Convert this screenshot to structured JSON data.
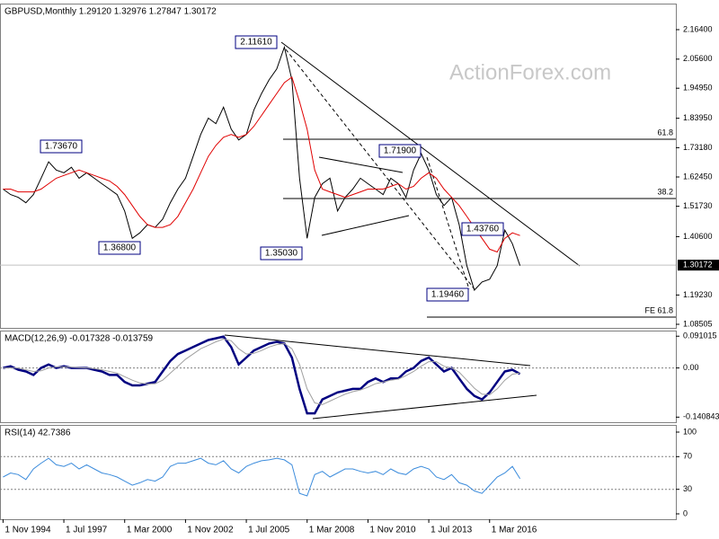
{
  "chart_data": [
    {
      "type": "line",
      "title": "GBPUSD,Monthly  1.29120 1.32976 1.27847 1.30172",
      "watermark": "ActionForex.com",
      "xlim": [
        -0.4,
        88.5
      ],
      "ylim": [
        1.0719,
        2.2561
      ],
      "yticks": [
        {
          "value": 2.164,
          "label": "2.16400"
        },
        {
          "value": 2.056,
          "label": "2.05600"
        },
        {
          "value": 1.9495,
          "label": "1.94950"
        },
        {
          "value": 1.8395,
          "label": "1.83950"
        },
        {
          "value": 1.7318,
          "label": "1.73180"
        },
        {
          "value": 1.6245,
          "label": "1.62450"
        },
        {
          "value": 1.5173,
          "label": "1.51730"
        },
        {
          "value": 1.406,
          "label": "1.40600"
        },
        {
          "value": 1.1923,
          "label": "1.19230"
        },
        {
          "value": 1.08505,
          "label": "1.08505"
        }
      ],
      "last_price": {
        "value": 1.30172,
        "label": "1.30172"
      },
      "levels": [
        {
          "value": 1.7627,
          "label": "61.8"
        },
        {
          "value": 1.5456,
          "label": "38.2"
        },
        {
          "value": 1.1114,
          "label": "FE 61.8"
        }
      ],
      "annotations": [
        "2.11610",
        "1.73670",
        "1.71900",
        "1.43760",
        "1.36800",
        "1.35030",
        "1.19460"
      ],
      "series": [
        {
          "color": "#000000",
          "values": [
            1.58,
            1.56,
            1.55,
            1.53,
            1.56,
            1.62,
            1.68,
            1.65,
            1.64,
            1.66,
            1.62,
            1.64,
            1.62,
            1.6,
            1.58,
            1.56,
            1.5,
            1.4,
            1.42,
            1.45,
            1.44,
            1.47,
            1.53,
            1.58,
            1.62,
            1.7,
            1.78,
            1.84,
            1.82,
            1.88,
            1.8,
            1.76,
            1.78,
            1.87,
            1.93,
            1.98,
            2.02,
            2.1,
            1.98,
            1.62,
            1.4,
            1.55,
            1.6,
            1.62,
            1.5,
            1.55,
            1.58,
            1.62,
            1.6,
            1.58,
            1.56,
            1.62,
            1.6,
            1.55,
            1.65,
            1.71,
            1.65,
            1.56,
            1.52,
            1.55,
            1.45,
            1.3,
            1.21,
            1.24,
            1.25,
            1.3,
            1.43,
            1.38,
            1.3
          ]
        },
        {
          "color": "#e00000",
          "values": [
            1.58,
            1.58,
            1.57,
            1.57,
            1.57,
            1.58,
            1.6,
            1.62,
            1.63,
            1.64,
            1.65,
            1.64,
            1.63,
            1.62,
            1.61,
            1.59,
            1.56,
            1.52,
            1.48,
            1.45,
            1.44,
            1.44,
            1.45,
            1.48,
            1.53,
            1.58,
            1.64,
            1.7,
            1.74,
            1.77,
            1.78,
            1.77,
            1.78,
            1.81,
            1.85,
            1.89,
            1.93,
            1.97,
            1.99,
            1.9,
            1.8,
            1.65,
            1.58,
            1.57,
            1.56,
            1.55,
            1.56,
            1.57,
            1.58,
            1.58,
            1.58,
            1.59,
            1.6,
            1.58,
            1.59,
            1.62,
            1.64,
            1.62,
            1.58,
            1.55,
            1.52,
            1.48,
            1.44,
            1.4,
            1.36,
            1.35,
            1.4,
            1.42,
            1.41
          ]
        }
      ]
    },
    {
      "type": "line",
      "title": "MACD(12,26,9) -0.017328 -0.013759",
      "xlim": [
        -0.4,
        88.5
      ],
      "ylim": [
        -0.1554,
        0.1045
      ],
      "yticks": [
        0.091015,
        {
          "value": 0,
          "label": "0.00"
        },
        -0.140843
      ],
      "levels": [
        0
      ],
      "series": [
        {
          "color": "#000080",
          "width": 2.5,
          "values": [
            0,
            0.005,
            -0.005,
            -0.01,
            -0.02,
            0,
            0.01,
            0,
            0.005,
            0,
            0,
            0,
            -0.005,
            -0.01,
            -0.02,
            -0.02,
            -0.04,
            -0.05,
            -0.05,
            -0.045,
            -0.04,
            -0.01,
            0.02,
            0.04,
            0.05,
            0.06,
            0.07,
            0.08,
            0.085,
            0.09,
            0.06,
            0.01,
            0.03,
            0.05,
            0.06,
            0.07,
            0.075,
            0.07,
            0.03,
            -0.06,
            -0.13,
            -0.13,
            -0.09,
            -0.08,
            -0.07,
            -0.065,
            -0.06,
            -0.06,
            -0.04,
            -0.03,
            -0.04,
            -0.03,
            -0.03,
            -0.01,
            0,
            0.02,
            0.03,
            0.01,
            -0.01,
            0,
            -0.03,
            -0.06,
            -0.08,
            -0.09,
            -0.07,
            -0.04,
            -0.01,
            -0.005,
            -0.017
          ]
        },
        {
          "color": "#a0a0a0",
          "width": 1,
          "values": [
            0,
            0,
            0,
            -0.005,
            -0.01,
            -0.008,
            0,
            0.003,
            0.003,
            0.002,
            0.001,
            0,
            -0.002,
            -0.005,
            -0.01,
            -0.015,
            -0.025,
            -0.035,
            -0.043,
            -0.046,
            -0.045,
            -0.035,
            -0.015,
            0.005,
            0.025,
            0.04,
            0.055,
            0.065,
            0.075,
            0.083,
            0.078,
            0.055,
            0.04,
            0.042,
            0.05,
            0.06,
            0.067,
            0.07,
            0.055,
            0.01,
            -0.06,
            -0.1,
            -0.105,
            -0.095,
            -0.085,
            -0.075,
            -0.068,
            -0.063,
            -0.055,
            -0.045,
            -0.04,
            -0.035,
            -0.032,
            -0.022,
            -0.01,
            0.005,
            0.018,
            0.018,
            0.005,
            0,
            -0.012,
            -0.035,
            -0.058,
            -0.075,
            -0.077,
            -0.06,
            -0.035,
            -0.018,
            -0.014
          ]
        }
      ]
    },
    {
      "type": "line",
      "title": "RSI(14) 42.7386",
      "xlim": [
        -0.4,
        88.5
      ],
      "ylim": [
        -6.6,
        107.7
      ],
      "yticks": [
        100,
        70,
        30,
        0
      ],
      "levels": [
        70,
        30
      ],
      "xticks": [
        {
          "value": 0,
          "label": "1 Nov 1994"
        },
        {
          "value": 8,
          "label": "1 Jul 1997"
        },
        {
          "value": 16,
          "label": "1 Mar 2000"
        },
        {
          "value": 24,
          "label": "1 Nov 2002"
        },
        {
          "value": 32,
          "label": "1 Jul 2005"
        },
        {
          "value": 40,
          "label": "1 Mar 2008"
        },
        {
          "value": 48,
          "label": "1 Nov 2010"
        },
        {
          "value": 56,
          "label": "1 Jul 2013"
        },
        {
          "value": 64,
          "label": "1 Mar 2016"
        }
      ],
      "series": [
        {
          "color": "#3c8cdc",
          "width": 1,
          "values": [
            45,
            50,
            48,
            42,
            55,
            62,
            68,
            60,
            58,
            62,
            55,
            60,
            55,
            50,
            48,
            45,
            40,
            35,
            38,
            42,
            40,
            45,
            58,
            62,
            62,
            65,
            68,
            62,
            60,
            65,
            55,
            50,
            58,
            62,
            65,
            66,
            68,
            66,
            60,
            25,
            22,
            48,
            52,
            45,
            50,
            55,
            55,
            52,
            50,
            52,
            48,
            55,
            50,
            48,
            55,
            58,
            55,
            45,
            42,
            48,
            38,
            35,
            28,
            25,
            35,
            45,
            50,
            58,
            43
          ]
        }
      ]
    }
  ]
}
